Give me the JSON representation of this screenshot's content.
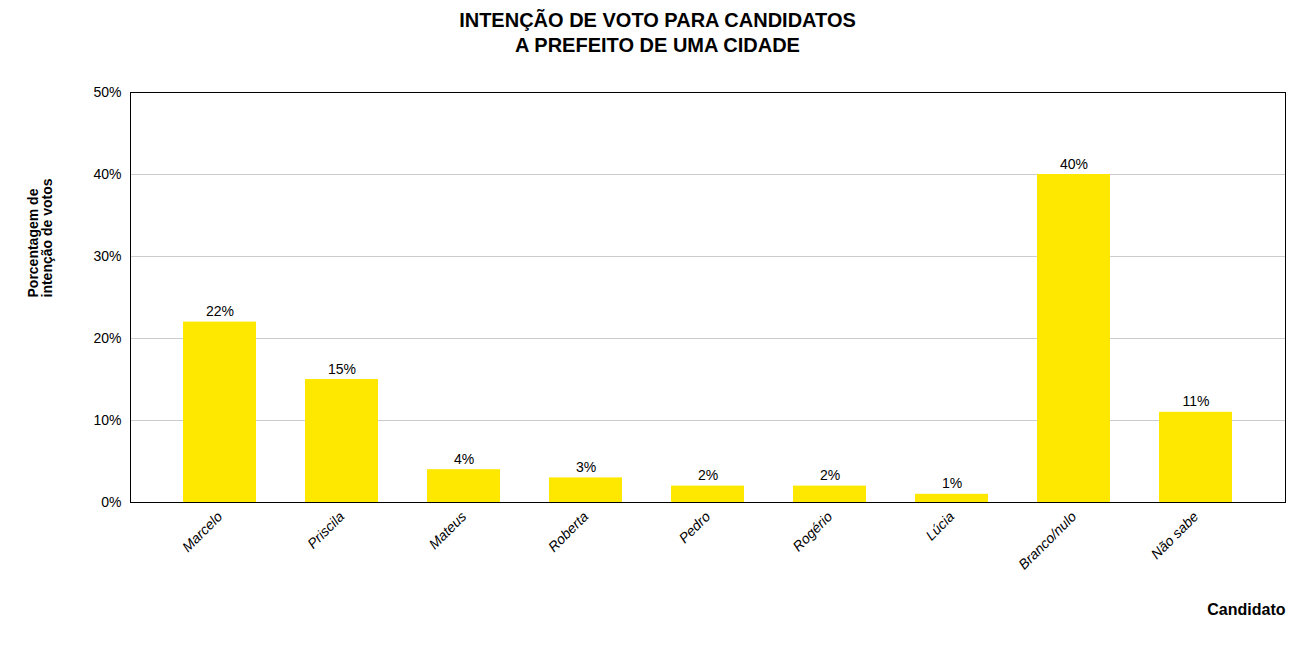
{
  "chart_data": {
    "type": "bar",
    "title": "INTENÇÃO DE VOTO PARA CANDIDATOS\nA PREFEITO DE UMA CIDADE",
    "xlabel": "Candidato",
    "ylabel": "Porcentagem de\nintenção de votos",
    "categories": [
      "Marcelo",
      "Priscila",
      "Mateus",
      "Roberta",
      "Pedro",
      "Rogério",
      "Lúcia",
      "Branco/nulo",
      "Não sabe"
    ],
    "values": [
      22,
      15,
      4,
      3,
      2,
      2,
      1,
      40,
      11
    ],
    "value_labels": [
      "22%",
      "15%",
      "4%",
      "3%",
      "2%",
      "2%",
      "1%",
      "40%",
      "11%"
    ],
    "data_labels": true,
    "color": "#FFE800",
    "ylim": [
      0,
      50
    ],
    "yticks": [
      {
        "value": 0,
        "label": "0%"
      },
      {
        "value": 10,
        "label": "10%"
      },
      {
        "value": 20,
        "label": "20%"
      },
      {
        "value": 30,
        "label": "30%"
      },
      {
        "value": 40,
        "label": "40%"
      },
      {
        "value": 50,
        "label": "50%"
      }
    ],
    "grid": true
  }
}
